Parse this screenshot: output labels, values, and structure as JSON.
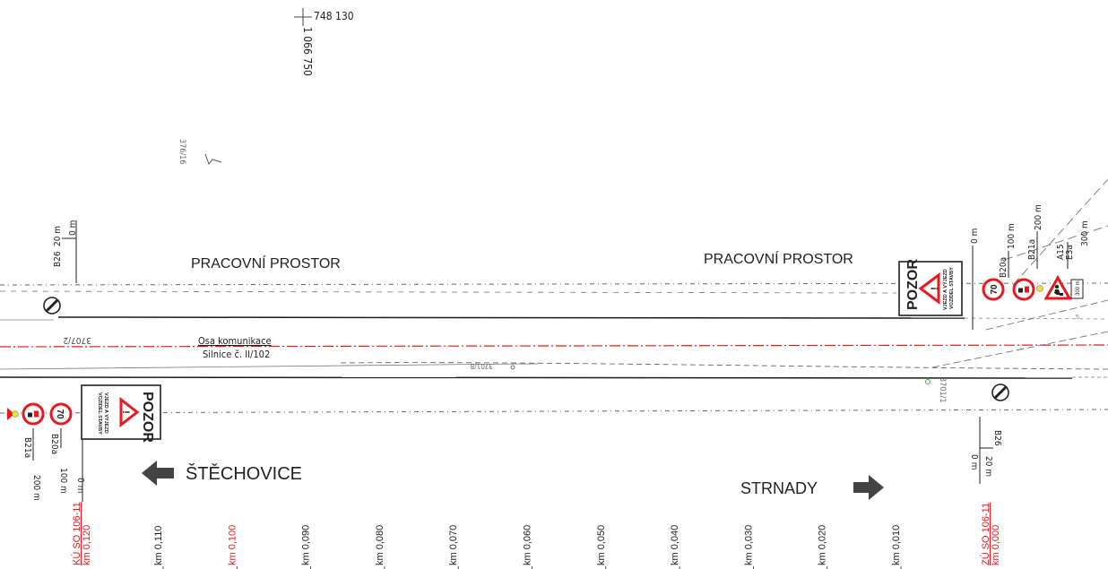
{
  "survey": {
    "y_coord": "748 130",
    "x_coord": "1 066 750"
  },
  "parcels": {
    "top_left": "376/16",
    "left_road": "3707/2",
    "middle": "3701/8",
    "right": "3701/1"
  },
  "zones": {
    "work_area_left": "PRACOVNÍ PROSTOR",
    "work_area_right": "PRACOVNÍ PROSTOR"
  },
  "road": {
    "axis_label": "Osa komunikace",
    "road_name": "Silnice č. II/102"
  },
  "directions": {
    "left": "ŠTĚCHOVICE",
    "right": "STRNADY"
  },
  "warning_sign": {
    "title": "POZOR",
    "line1": "VJEZD A VÝJEZD",
    "line2": "VOZIDEL STAVBY"
  },
  "speed_limit": "70",
  "distance_plate": "300 m",
  "upper_signs": {
    "b26_code": "B26",
    "b26_dist": "20 m",
    "zero": "0 m",
    "zero_right": "0 m",
    "b20a_code": "B20a",
    "b20a_dist": "100 m",
    "b21a_code": "B21a",
    "b21a_dist": "200 m",
    "a15_code": "A15",
    "e3a_code": "E3a",
    "a15_dist": "300 m"
  },
  "lower_signs": {
    "b21a_code": "B21a",
    "b21a_dist": "200 m",
    "b20a_code": "B20a",
    "b20a_dist": "100 m",
    "zero_left": "0 m",
    "b26_code": "B26",
    "b26_dist": "20 m",
    "zero_right": "0 m"
  },
  "chainage": {
    "start_label": "KÚ SO 106-11",
    "start_km": "km 0,120",
    "end_label": "ZÚ SO 106-11",
    "end_km": "km 0,000",
    "marks": [
      "km 0,110",
      "km 0,100",
      "km 0,090",
      "km 0,080",
      "km 0,070",
      "km 0,060",
      "km 0,050",
      "km 0,040",
      "km 0,030",
      "km 0,020",
      "km 0,010"
    ],
    "highlighted": "km 0,100"
  },
  "colors": {
    "accent_red": "#e8191f",
    "line": "#2a2a2a",
    "survey_line": "#555555"
  }
}
